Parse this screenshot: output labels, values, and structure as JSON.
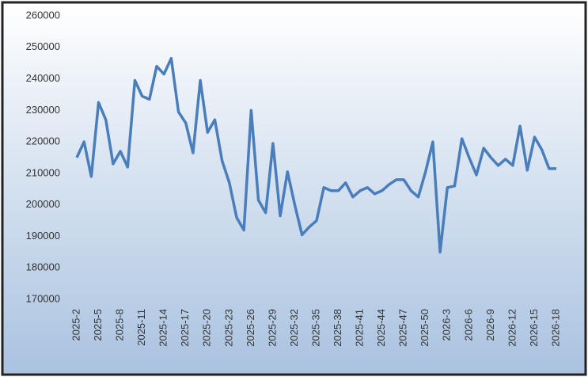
{
  "chart_data": {
    "type": "line",
    "categories": [
      "2025-2",
      null,
      null,
      "2025-5",
      null,
      null,
      "2025-8",
      null,
      null,
      "2025-11",
      null,
      null,
      "2025-14",
      null,
      null,
      "2025-17",
      null,
      null,
      "2025-20",
      null,
      null,
      "2025-23",
      null,
      null,
      "2025-26",
      null,
      null,
      "2025-29",
      null,
      null,
      "2025-32",
      null,
      null,
      "2025-35",
      null,
      null,
      "2025-38",
      null,
      null,
      "2025-41",
      null,
      null,
      "2025-44",
      null,
      null,
      "2025-47",
      null,
      null,
      "2025-50",
      null,
      null,
      "2026-3",
      null,
      null,
      "2026-6",
      null,
      null,
      "2026-9",
      null,
      null,
      "2026-12",
      null,
      null,
      "2026-15",
      null,
      null,
      "2026-18"
    ],
    "series": [
      {
        "color": "#4a7ebb",
        "values": [
          215000,
          220000,
          209000,
          232500,
          227000,
          213000,
          217000,
          212000,
          239500,
          234500,
          233500,
          244000,
          241500,
          246500,
          229500,
          226000,
          216500,
          239500,
          223000,
          227000,
          214000,
          207000,
          196000,
          192000,
          230000,
          201500,
          197500,
          219500,
          196500,
          210500,
          200000,
          190500,
          193000,
          195000,
          205500,
          204500,
          204500,
          207000,
          202500,
          204500,
          205500,
          203500,
          204500,
          206500,
          208000,
          208000,
          204500,
          202500,
          210500,
          220000,
          185000,
          205500,
          206000,
          221000,
          215000,
          209500,
          218000,
          215000,
          212500,
          214500,
          212500,
          225000,
          211000,
          221500,
          217500,
          211500,
          211500
        ]
      }
    ],
    "ylim": [
      170000,
      260000
    ],
    "yticks": [
      170000,
      180000,
      190000,
      200000,
      210000,
      220000,
      230000,
      240000,
      250000,
      260000
    ],
    "grid": false
  }
}
